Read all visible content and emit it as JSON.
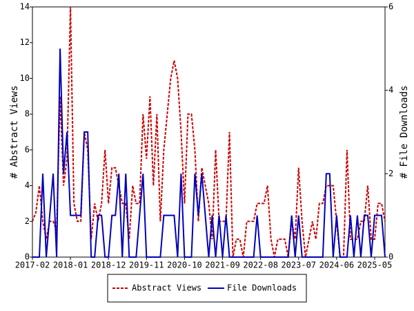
{
  "chart_data": {
    "type": "line",
    "categories": [
      "2017-02",
      null,
      null,
      null,
      null,
      null,
      null,
      null,
      null,
      null,
      null,
      "2018-01",
      null,
      null,
      null,
      null,
      null,
      null,
      null,
      null,
      null,
      null,
      "2018-12",
      null,
      null,
      null,
      null,
      null,
      null,
      null,
      null,
      null,
      null,
      "2019-11",
      null,
      null,
      null,
      null,
      null,
      null,
      null,
      null,
      null,
      null,
      "2020-10",
      null,
      null,
      null,
      null,
      null,
      null,
      null,
      null,
      null,
      null,
      "2021-09",
      null,
      null,
      null,
      null,
      null,
      null,
      null,
      null,
      null,
      null,
      "2022-08",
      null,
      null,
      null,
      null,
      null,
      null,
      null,
      null,
      null,
      null,
      "2023-07",
      null,
      null,
      null,
      null,
      null,
      null,
      null,
      null,
      null,
      null,
      "2024-06",
      null,
      null,
      null,
      null,
      null,
      null,
      null,
      null,
      null,
      null,
      "2025-05",
      null,
      null,
      null
    ],
    "ylabel": "# Abstract Views",
    "y2label": "# File Downloads",
    "ylim": [
      0,
      14
    ],
    "yticks": [
      0,
      2,
      4,
      6,
      8,
      10,
      12,
      14
    ],
    "y2lim": [
      0,
      6
    ],
    "y2ticks": [
      0,
      2,
      4,
      6
    ],
    "legend": "bottom",
    "series": [
      {
        "name": "Abstract Views",
        "color": "#cc0000",
        "dash": true,
        "values": [
          2,
          2.5,
          4,
          2,
          1,
          2,
          2,
          1.5,
          9,
          4,
          5.5,
          14,
          3,
          2,
          2,
          7,
          6,
          1,
          3,
          2,
          3,
          6,
          3,
          5,
          5,
          4,
          3,
          3,
          1,
          4,
          3,
          3,
          8,
          5.5,
          9,
          4,
          8,
          2,
          6,
          8,
          10,
          11,
          10,
          7,
          3,
          8,
          8,
          6,
          2,
          5,
          4,
          3,
          1,
          6,
          2,
          2,
          2,
          7,
          0,
          1,
          1,
          0,
          2,
          2,
          2,
          3,
          3,
          3,
          4,
          1,
          0,
          1,
          1,
          1,
          0,
          2,
          1,
          5,
          2,
          0,
          1,
          2,
          1,
          3,
          3,
          4,
          4,
          4,
          2,
          0,
          0,
          6,
          1,
          1,
          1,
          2,
          2,
          4,
          1,
          1,
          3,
          3,
          2
        ]
      },
      {
        "name": "File Downloads",
        "color": "#0000bb",
        "axis": "y2",
        "values": [
          0,
          0,
          0,
          2,
          0,
          1,
          2,
          0,
          5,
          2,
          3,
          1,
          1,
          1,
          1,
          3,
          3,
          0,
          0,
          1,
          1,
          0,
          0,
          1,
          1,
          2,
          0,
          2,
          0,
          0,
          0,
          1,
          2,
          0,
          0,
          0,
          0,
          0,
          1,
          1,
          1,
          1,
          0,
          2,
          0,
          0,
          0,
          2,
          1,
          2,
          1,
          0,
          1,
          0,
          1,
          0,
          1,
          0,
          0,
          0,
          0,
          0,
          0,
          0,
          0,
          1,
          0,
          0,
          0,
          0,
          0,
          0,
          0,
          0,
          0,
          1,
          0,
          1,
          0,
          0,
          0,
          0,
          0,
          0,
          0,
          2,
          2,
          0,
          1,
          0,
          0,
          0,
          1,
          0,
          1,
          0,
          1,
          1,
          0,
          1,
          1,
          1,
          0
        ]
      }
    ]
  }
}
